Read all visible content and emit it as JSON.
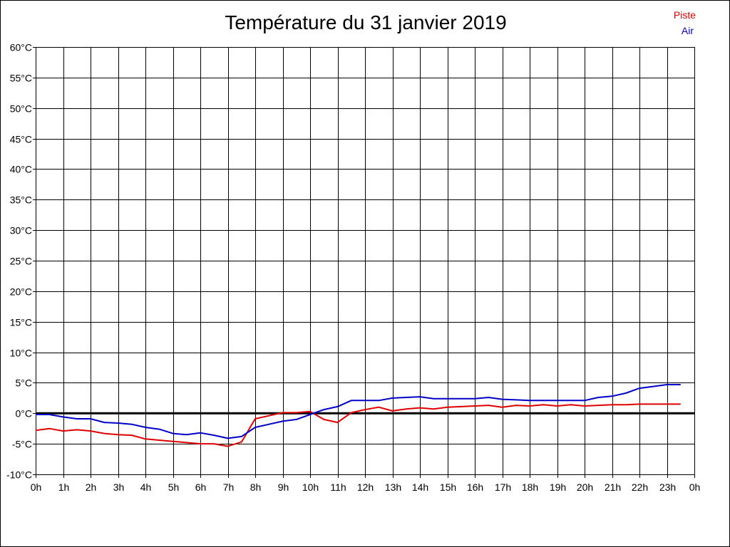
{
  "chart_data": {
    "type": "line",
    "title": "Température du 31 janvier 2019",
    "ylim": [
      -10,
      60
    ],
    "y_ticks": [
      {
        "value": 60,
        "label": "60°C"
      },
      {
        "value": 55,
        "label": "55°C"
      },
      {
        "value": 50,
        "label": "50°C"
      },
      {
        "value": 45,
        "label": "45°C"
      },
      {
        "value": 40,
        "label": "40°C"
      },
      {
        "value": 35,
        "label": "35°C"
      },
      {
        "value": 30,
        "label": "30°C"
      },
      {
        "value": 25,
        "label": "25°C"
      },
      {
        "value": 20,
        "label": "20°C"
      },
      {
        "value": 15,
        "label": "15°C"
      },
      {
        "value": 10,
        "label": "10°C"
      },
      {
        "value": 5,
        "label": "5°C"
      },
      {
        "value": 0,
        "label": "0°C"
      },
      {
        "value": -5,
        "label": "-5°C"
      },
      {
        "value": -10,
        "label": "-10°C"
      }
    ],
    "x_range": [
      0,
      24
    ],
    "x_ticks": [
      "0h",
      "1h",
      "2h",
      "3h",
      "4h",
      "5h",
      "6h",
      "7h",
      "8h",
      "9h",
      "10h",
      "11h",
      "12h",
      "13h",
      "14h",
      "15h",
      "16h",
      "17h",
      "18h",
      "19h",
      "20h",
      "21h",
      "22h",
      "23h",
      "0h"
    ],
    "grid": true,
    "legend_position": "top-right",
    "zero_line": true,
    "series": [
      {
        "name": "Piste",
        "color": "#e00000",
        "points": [
          [
            0,
            -2.8
          ],
          [
            0.5,
            -2.5
          ],
          [
            1,
            -2.9
          ],
          [
            1.5,
            -2.7
          ],
          [
            2,
            -2.9
          ],
          [
            2.5,
            -3.3
          ],
          [
            3,
            -3.5
          ],
          [
            3.5,
            -3.6
          ],
          [
            4,
            -4.2
          ],
          [
            4.5,
            -4.4
          ],
          [
            5,
            -4.6
          ],
          [
            5.5,
            -4.8
          ],
          [
            6,
            -5.0
          ],
          [
            6.5,
            -5.0
          ],
          [
            7,
            -5.4
          ],
          [
            7.5,
            -4.7
          ],
          [
            8,
            -0.9
          ],
          [
            8.5,
            -0.4
          ],
          [
            9,
            0.1
          ],
          [
            9.5,
            0.1
          ],
          [
            10,
            0.3
          ],
          [
            10.5,
            -1.0
          ],
          [
            11,
            -1.5
          ],
          [
            11.5,
            0.1
          ],
          [
            12,
            0.6
          ],
          [
            12.5,
            1.0
          ],
          [
            13,
            0.4
          ],
          [
            13.5,
            0.7
          ],
          [
            14,
            0.9
          ],
          [
            14.5,
            0.7
          ],
          [
            15,
            1.0
          ],
          [
            15.5,
            1.1
          ],
          [
            16,
            1.2
          ],
          [
            16.5,
            1.3
          ],
          [
            17,
            1.0
          ],
          [
            17.5,
            1.3
          ],
          [
            18,
            1.2
          ],
          [
            18.5,
            1.4
          ],
          [
            19,
            1.2
          ],
          [
            19.5,
            1.4
          ],
          [
            20,
            1.2
          ],
          [
            20.5,
            1.3
          ],
          [
            21,
            1.4
          ],
          [
            21.5,
            1.4
          ],
          [
            22,
            1.5
          ],
          [
            22.5,
            1.5
          ],
          [
            23,
            1.5
          ],
          [
            23.5,
            1.5
          ]
        ]
      },
      {
        "name": "Air",
        "color": "#0000c8",
        "points": [
          [
            0,
            -0.2
          ],
          [
            0.5,
            -0.2
          ],
          [
            1,
            -0.6
          ],
          [
            1.5,
            -0.9
          ],
          [
            2,
            -0.9
          ],
          [
            2.5,
            -1.5
          ],
          [
            3,
            -1.6
          ],
          [
            3.5,
            -1.8
          ],
          [
            4,
            -2.3
          ],
          [
            4.5,
            -2.6
          ],
          [
            5,
            -3.3
          ],
          [
            5.5,
            -3.5
          ],
          [
            6,
            -3.2
          ],
          [
            6.5,
            -3.6
          ],
          [
            7,
            -4.1
          ],
          [
            7.5,
            -3.8
          ],
          [
            8,
            -2.3
          ],
          [
            8.5,
            -1.8
          ],
          [
            9,
            -1.3
          ],
          [
            9.5,
            -1.0
          ],
          [
            10,
            -0.2
          ],
          [
            10.5,
            0.6
          ],
          [
            11,
            1.1
          ],
          [
            11.5,
            2.1
          ],
          [
            12,
            2.1
          ],
          [
            12.5,
            2.1
          ],
          [
            13,
            2.5
          ],
          [
            13.5,
            2.6
          ],
          [
            14,
            2.7
          ],
          [
            14.5,
            2.4
          ],
          [
            15,
            2.4
          ],
          [
            15.5,
            2.4
          ],
          [
            16,
            2.4
          ],
          [
            16.5,
            2.6
          ],
          [
            17,
            2.3
          ],
          [
            17.5,
            2.2
          ],
          [
            18,
            2.1
          ],
          [
            18.5,
            2.1
          ],
          [
            19,
            2.1
          ],
          [
            19.5,
            2.1
          ],
          [
            20,
            2.1
          ],
          [
            20.5,
            2.6
          ],
          [
            21,
            2.8
          ],
          [
            21.5,
            3.3
          ],
          [
            22,
            4.1
          ],
          [
            22.5,
            4.4
          ],
          [
            23,
            4.7
          ],
          [
            23.5,
            4.7
          ]
        ]
      }
    ]
  }
}
